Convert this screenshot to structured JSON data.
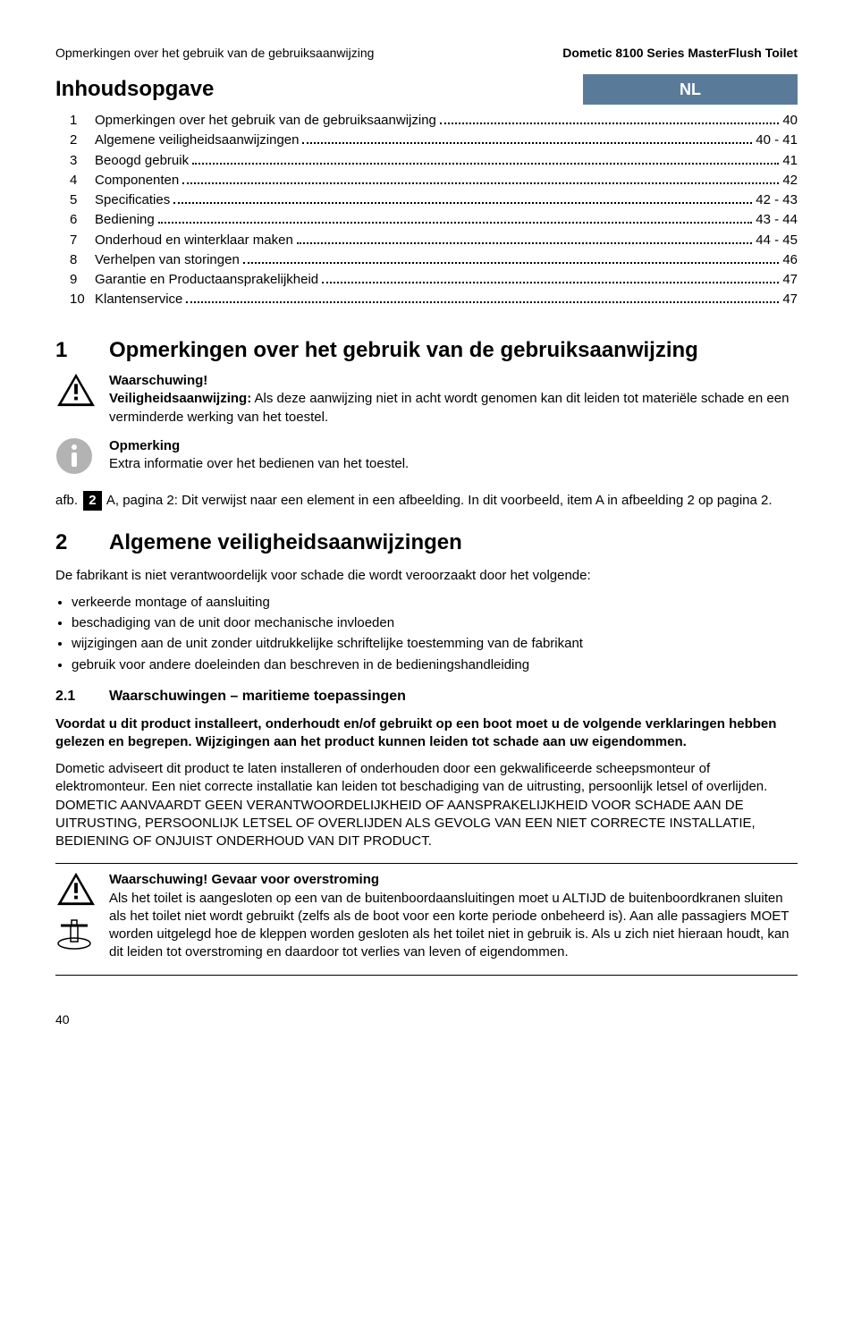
{
  "header": {
    "left": "Opmerkingen over het gebruik van de gebruiksaanwijzing",
    "right": "Dometic 8100 Series MasterFlush Toilet"
  },
  "title": "Inhoudsopgave",
  "lang_badge": "NL",
  "lang_badge_bg": "#5a7a9a",
  "toc": [
    {
      "n": "1",
      "label": "Opmerkingen over het gebruik van de gebruiksaanwijzing",
      "page": "40"
    },
    {
      "n": "2",
      "label": "Algemene veiligheidsaanwijzingen",
      "page": "40 - 41"
    },
    {
      "n": "3",
      "label": "Beoogd gebruik",
      "page": "41"
    },
    {
      "n": "4",
      "label": "Componenten",
      "page": "42"
    },
    {
      "n": "5",
      "label": "Specificaties",
      "page": "42 - 43"
    },
    {
      "n": "6",
      "label": "Bediening",
      "page": "43 - 44"
    },
    {
      "n": "7",
      "label": "Onderhoud en winterklaar maken",
      "page": "44 - 45"
    },
    {
      "n": "8",
      "label": "Verhelpen van storingen",
      "page": "46"
    },
    {
      "n": "9",
      "label": "Garantie en Productaansprakelijkheid",
      "page": "47"
    },
    {
      "n": "10",
      "label": "Klantenservice",
      "page": "47"
    }
  ],
  "sec1": {
    "num": "1",
    "title": "Opmerkingen over het gebruik van de gebruiksaanwijzing",
    "warn_head": "Waarschuwing!",
    "warn_lead": "Veiligheidsaanwijzing:",
    "warn_body": " Als deze aanwijzing niet in acht wordt genomen kan dit leiden tot materiële schade en een verminderde werking van het toestel.",
    "note_head": "Opmerking",
    "note_body": "Extra informatie over het bedienen van het toestel.",
    "afb_prefix": "afb. ",
    "afb_box": "2",
    "afb_lead": " A, pagina 2:",
    "afb_body": " Dit verwijst naar een element in een afbeelding. In dit voorbeeld, item A in afbeelding 2 op pagina 2."
  },
  "sec2": {
    "num": "2",
    "title": "Algemene veiligheidsaanwijzingen",
    "intro": "De fabrikant is niet verantwoordelijk voor schade die wordt veroorzaakt door het volgende:",
    "bullets": [
      "verkeerde montage of aansluiting",
      "beschadiging van de unit door mechanische invloeden",
      "wijzigingen aan de unit zonder uitdrukkelijke schriftelijke toestemming van de fabrikant",
      "gebruik voor andere doeleinden dan beschreven in de bedieningshandleiding"
    ],
    "sub_num": "2.1",
    "sub_title": "Waarschuwingen – maritieme toepassingen",
    "bold_para": "Voordat u dit product installeert, onderhoudt en/of gebruikt op een boot moet u de volgende verklaringen hebben gelezen en begrepen. Wijzigingen aan het product kunnen leiden tot schade aan uw eigendommen.",
    "long_para": "Dometic adviseert dit product te laten installeren of onderhouden door een gekwalificeerde scheepsmonteur of elektromonteur.  Een niet correcte installatie kan leiden tot beschadiging van de uitrusting, persoonlijk letsel of overlijden. DOMETIC AANVAARDT GEEN VERANTWOORDELIJKHEID OF AANSPRAKELIJKHEID VOOR SCHADE AAN DE UITRUSTING, PERSOONLIJK LETSEL OF OVERLIJDEN ALS GEVOLG VAN EEN NIET CORRECTE INSTALLATIE, BEDIENING OF ONJUIST ONDERHOUD VAN DIT PRODUCT.",
    "flood_head": "Waarschuwing!  Gevaar voor overstroming",
    "flood_body": "Als het toilet is aangesloten op een van de buitenboordaansluitingen moet u ALTIJD de buitenboordkranen sluiten als het toilet niet wordt gebruikt (zelfs als de boot voor een korte periode onbeheerd is). Aan alle passagiers MOET worden uitgelegd hoe de kleppen worden gesloten als het toilet niet in gebruik is. Als u zich niet hieraan houdt, kan dit leiden tot overstroming en daardoor tot verlies van leven of eigendommen."
  },
  "page_number": "40"
}
